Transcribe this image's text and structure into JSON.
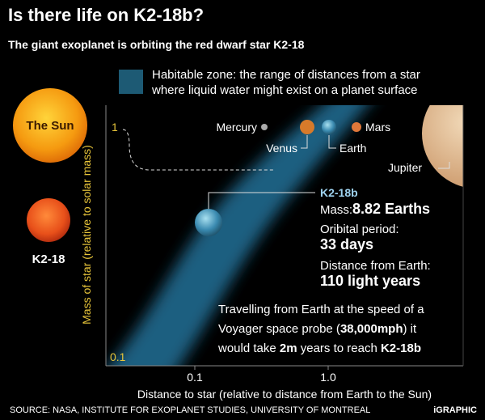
{
  "header": {
    "title": "Is there life on  K2-18b?",
    "subtitle": "The giant exoplanet is orbiting the red dwarf star K2-18"
  },
  "legend": {
    "habitable_zone": [
      "Habitable zone: the range of distances from a star",
      "where liquid water might exist on a planet surface"
    ]
  },
  "stars": {
    "sun": "The Sun",
    "k2_18": "K2-18"
  },
  "axes": {
    "y_label": "Mass of star (relative to solar mass)",
    "y_ticks": [
      "1",
      "0.1"
    ],
    "x_ticks": [
      "0.1",
      "1.0"
    ],
    "x_label": "Distance to star (relative to distance from Earth to the Sun)"
  },
  "planets": {
    "mercury": "Mercury",
    "venus": "Venus",
    "earth": "Earth",
    "mars": "Mars",
    "jupiter": "Jupiter"
  },
  "k2_18b": {
    "name": "K2-18b",
    "mass_label": "Mass:",
    "mass": "8.82 Earths",
    "period_label": "Oribital period:",
    "period": "33 days",
    "distance_label": "Distance from Earth:",
    "distance": "110 light years"
  },
  "note": [
    [
      {
        "text": "Travelling from Earth at the speed of a",
        "bold": false
      }
    ],
    [
      {
        "text": "Voyager space probe (",
        "bold": false
      },
      {
        "text": "38,000mph",
        "bold": true
      },
      {
        "text": ") it",
        "bold": false
      }
    ],
    [
      {
        "text": "would take ",
        "bold": false
      },
      {
        "text": "2m",
        "bold": true
      },
      {
        "text": " years to reach ",
        "bold": false
      },
      {
        "text": "K2-18b",
        "bold": true
      }
    ]
  ],
  "footer": {
    "source": "SOURCE: NASA, INSTITUTE FOR EXOPLANET STUDIES, UNIVERSITY OF MONTREAL",
    "brand": "iGRAPHIC"
  }
}
